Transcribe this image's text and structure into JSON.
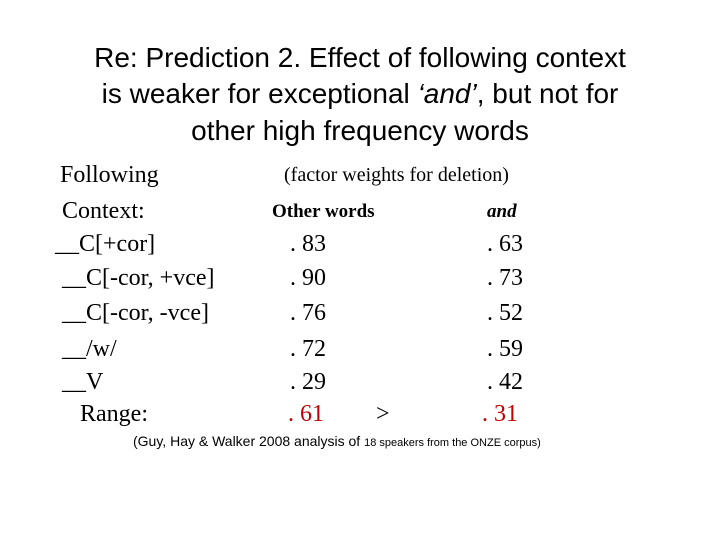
{
  "title": {
    "line1": "Re: Prediction 2. Effect of following context",
    "line2_start": "is weaker for exceptional ",
    "line2_italic": "‘and’",
    "line2_end": ", but not for",
    "line3": "other high frequency words"
  },
  "table": {
    "header": {
      "row1_label": "Following",
      "row1_note": "(factor weights for deletion)",
      "row2_label": "Context:",
      "col1": "Other words",
      "col2": "and"
    },
    "rows": [
      [
        "__C[+cor]",
        ". 83",
        ". 63"
      ],
      [
        "__C[-cor, +vce]",
        ". 90",
        ". 73"
      ],
      [
        "__C[-cor, -vce]",
        ". 76",
        ". 52"
      ],
      [
        "__/w/",
        ". 72",
        ". 59"
      ],
      [
        "__V",
        ". 29",
        ". 42"
      ]
    ],
    "range": {
      "label": "Range:",
      "col1": ". 61",
      "comparison": ">",
      "col2": ". 31"
    }
  },
  "footnote": {
    "part1": "(Guy, Hay & Walker 2008 analysis of ",
    "part2": "18 speakers from the ONZE corpus)"
  }
}
